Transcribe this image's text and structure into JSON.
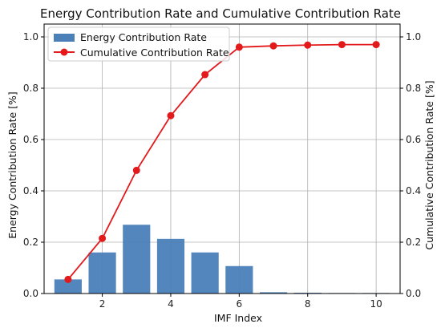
{
  "chart_data": {
    "type": "bar",
    "title": "Energy Contribution Rate and Cumulative Contribution Rate",
    "xlabel": "IMF Index",
    "ylabel_left": "Energy Contribution Rate [%]",
    "ylabel_right": "Cumulative Contribution Rate [%]",
    "x": [
      1,
      2,
      3,
      4,
      5,
      6,
      7,
      8,
      9,
      10
    ],
    "xlim": [
      0.3,
      10.7
    ],
    "ylim": [
      0,
      1.05
    ],
    "xticks": [
      2,
      4,
      6,
      8,
      10
    ],
    "yticks": [
      0.0,
      0.2,
      0.4,
      0.6,
      0.8,
      1.0
    ],
    "ytick_labels": [
      "0.0",
      "0.2",
      "0.4",
      "0.6",
      "0.8",
      "1.0"
    ],
    "grid": true,
    "legend_position": "top-left",
    "series": [
      {
        "name": "Energy Contribution Rate",
        "kind": "bar",
        "color": "#4a7fb8",
        "values": [
          0.055,
          0.16,
          0.268,
          0.213,
          0.16,
          0.107,
          0.005,
          0.003,
          0.002,
          0.002
        ]
      },
      {
        "name": "Cumulative Contribution Rate",
        "kind": "line",
        "color": "#e31a1c",
        "values": [
          0.055,
          0.215,
          0.48,
          0.693,
          0.853,
          0.96,
          0.965,
          0.968,
          0.97,
          0.97
        ]
      }
    ]
  }
}
